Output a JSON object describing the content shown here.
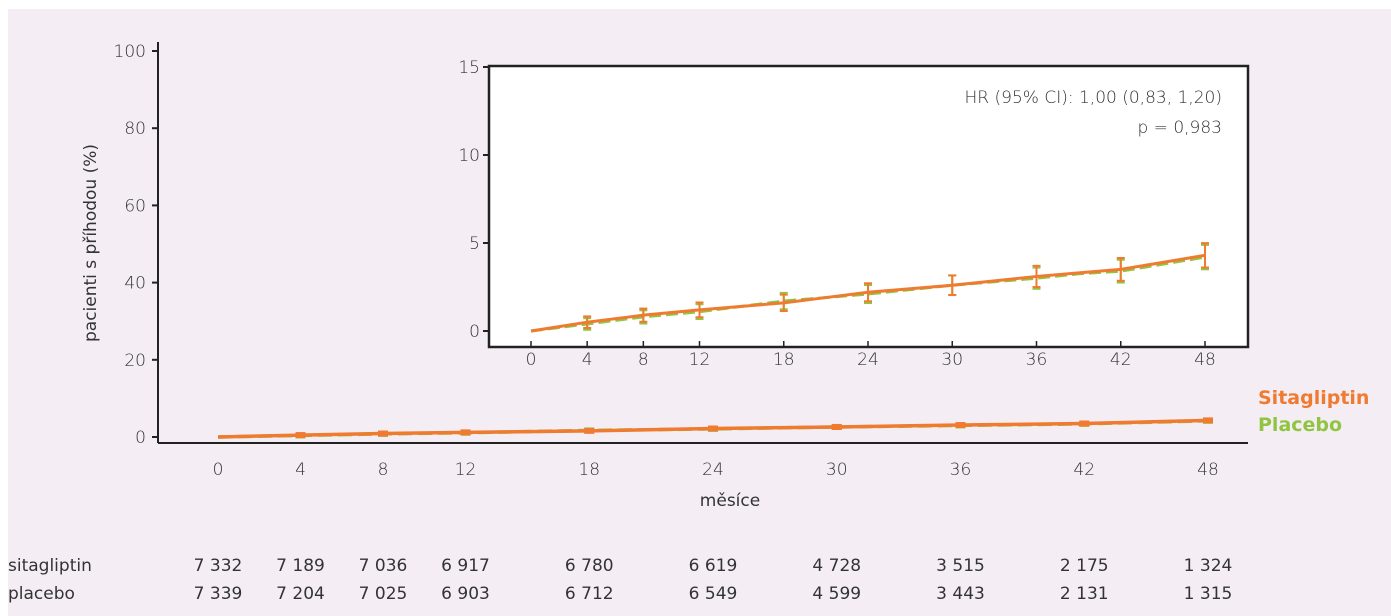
{
  "chart_data": [
    {
      "type": "line",
      "xlabel": "měsíce",
      "ylabel": "pacienti s příhodou (%)",
      "ylim": [
        0,
        100
      ],
      "xlim": [
        0,
        48
      ],
      "x_ticks": [
        0,
        4,
        8,
        12,
        18,
        24,
        30,
        36,
        42,
        48
      ],
      "y_ticks": [
        0,
        20,
        40,
        60,
        80,
        100
      ],
      "grid": false,
      "legend_placement": "right, end of curves",
      "series": [
        {
          "name": "Sitagliptin",
          "color": "#ef7a30",
          "x": [
            0,
            4,
            8,
            12,
            18,
            24,
            30,
            36,
            42,
            48
          ],
          "values": [
            0,
            0.5,
            0.9,
            1.2,
            1.6,
            2.2,
            2.6,
            3.1,
            3.5,
            4.3
          ]
        },
        {
          "name": "Placebo",
          "color": "#8fc540",
          "x": [
            0,
            4,
            8,
            12,
            18,
            24,
            30,
            36,
            42,
            48
          ],
          "values": [
            0,
            0.4,
            0.8,
            1.1,
            1.7,
            2.1,
            2.6,
            3.0,
            3.4,
            4.2
          ]
        }
      ]
    },
    {
      "type": "line",
      "role": "inset",
      "ylim": [
        0,
        15
      ],
      "xlim": [
        0,
        48
      ],
      "x_ticks": [
        0,
        4,
        8,
        12,
        18,
        24,
        30,
        36,
        42,
        48
      ],
      "y_ticks": [
        0,
        5,
        10,
        15
      ],
      "annotation": [
        "HR (95% CI): 1,00 (0,83, 1,20)",
        "p = 0,983"
      ],
      "series": [
        {
          "color": "#ef7a30",
          "x": [
            0,
            2,
            4,
            6,
            8,
            10,
            12,
            15,
            18,
            21,
            24,
            27,
            30,
            33,
            36,
            39,
            42,
            45,
            48
          ],
          "values": [
            0,
            0.25,
            0.5,
            0.7,
            0.9,
            1.05,
            1.2,
            1.4,
            1.6,
            1.9,
            2.2,
            2.4,
            2.6,
            2.85,
            3.1,
            3.3,
            3.5,
            3.9,
            4.3
          ]
        },
        {
          "color": "#8fc540",
          "x": [
            0,
            2,
            4,
            6,
            8,
            10,
            12,
            15,
            18,
            21,
            24,
            27,
            30,
            33,
            36,
            39,
            42,
            45,
            48
          ],
          "values": [
            0,
            0.2,
            0.4,
            0.6,
            0.8,
            0.95,
            1.1,
            1.4,
            1.7,
            1.9,
            2.1,
            2.35,
            2.6,
            2.8,
            3.0,
            3.25,
            3.4,
            3.8,
            4.2
          ]
        }
      ]
    }
  ],
  "risk_table": {
    "x": [
      0,
      4,
      8,
      12,
      18,
      24,
      30,
      36,
      42,
      48
    ],
    "rows": [
      {
        "label": "sitagliptin",
        "values": [
          "7 332",
          "7 189",
          "7 036",
          "6 917",
          "6 780",
          "6 619",
          "4 728",
          "3 515",
          "2 175",
          "1 324"
        ]
      },
      {
        "label": "placebo",
        "values": [
          "7 339",
          "7 204",
          "7 025",
          "6 903",
          "6 712",
          "6 549",
          "4 599",
          "3 443",
          "2 131",
          "1 315"
        ]
      }
    ]
  }
}
